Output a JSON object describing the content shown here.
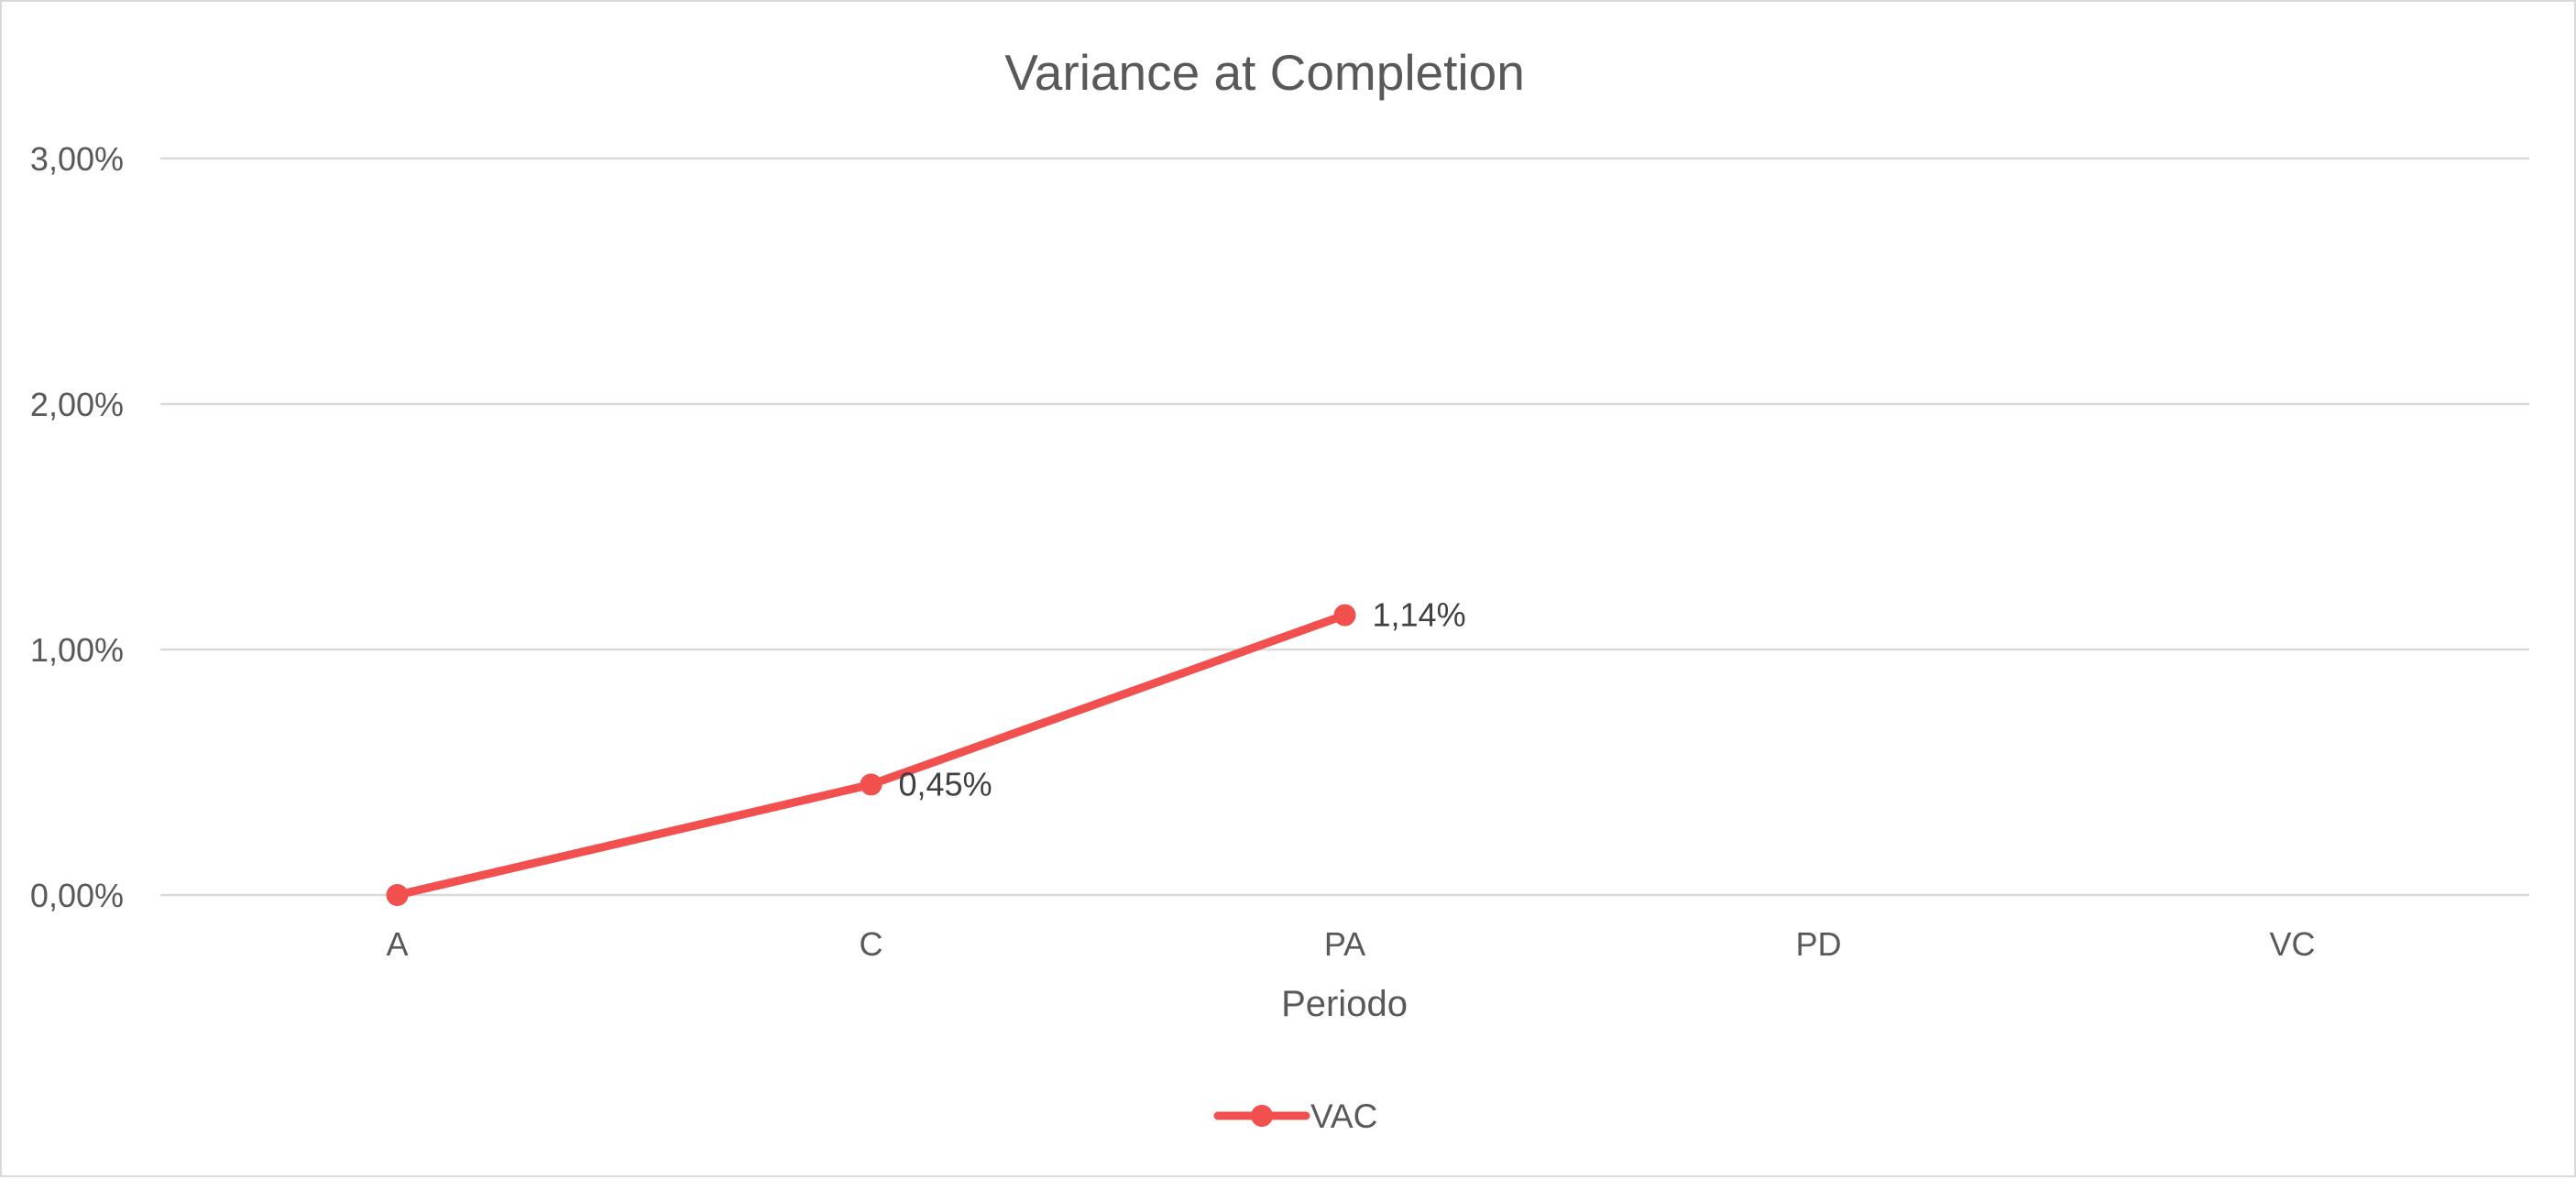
{
  "chart_data": {
    "type": "line",
    "title": "Variance at Completion",
    "xlabel": "Periodo",
    "ylabel": "",
    "categories": [
      "A",
      "C",
      "PA",
      "PD",
      "VC"
    ],
    "ylim": [
      0,
      0.03
    ],
    "yticks": [
      0,
      0.01,
      0.02,
      0.03
    ],
    "ytick_labels": [
      "0,00%",
      "1,00%",
      "2,00%",
      "3,00%"
    ],
    "grid": true,
    "legend_position": "bottom",
    "series": [
      {
        "name": "VAC",
        "color": "#f24f4f",
        "values": [
          0.0,
          0.0045,
          0.0114,
          null,
          null
        ],
        "data_labels": [
          "",
          "0,45%",
          "1,14%",
          "",
          ""
        ]
      }
    ]
  }
}
